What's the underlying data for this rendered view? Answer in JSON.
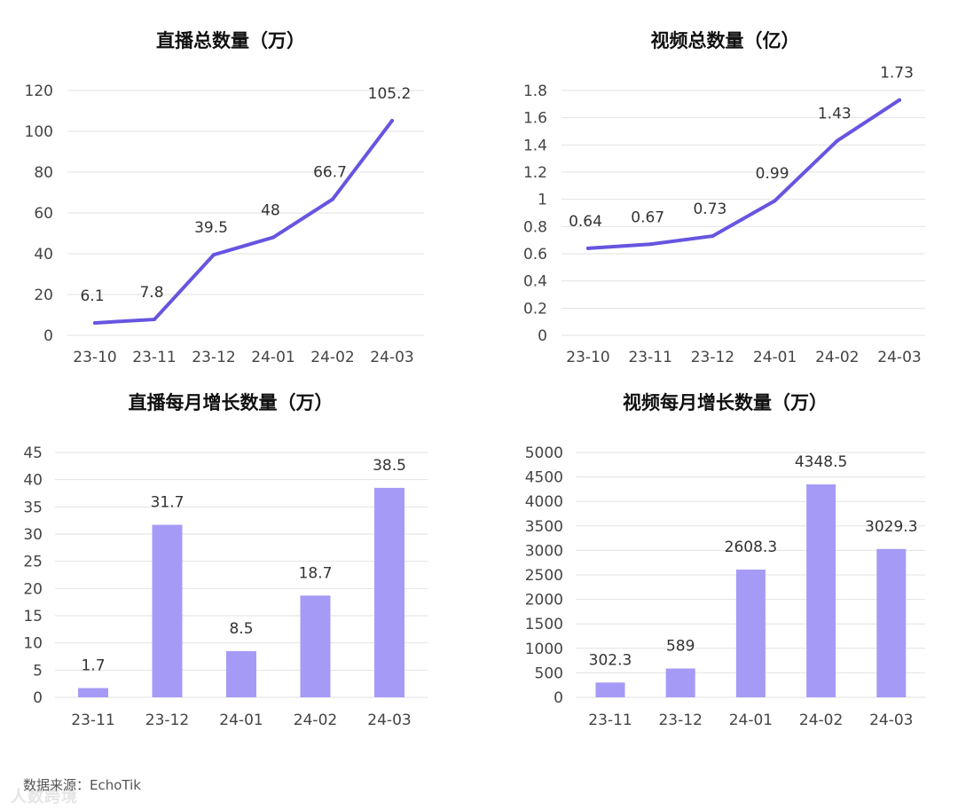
{
  "colors": {
    "line": "#6655e0",
    "bar": "#a59bf6",
    "grid": "#e2e2e2",
    "label": "#333333",
    "axis": "#444444"
  },
  "chart_data": [
    {
      "id": "live-total",
      "type": "line",
      "title": "直播总数量（万）",
      "categories": [
        "23-10",
        "23-11",
        "23-12",
        "24-01",
        "24-02",
        "24-03"
      ],
      "values": [
        6.1,
        7.8,
        39.5,
        48,
        66.7,
        105.2
      ],
      "value_labels": [
        "6.1",
        "7.8",
        "39.5",
        "48",
        "66.7",
        "105.2"
      ],
      "ylim": [
        0,
        120
      ],
      "yticks": [
        "0",
        "20",
        "40",
        "60",
        "80",
        "100",
        "120"
      ],
      "grid": true
    },
    {
      "id": "video-total",
      "type": "line",
      "title": "视频总数量（亿）",
      "categories": [
        "23-10",
        "23-11",
        "23-12",
        "24-01",
        "24-02",
        "24-03"
      ],
      "values": [
        0.64,
        0.67,
        0.73,
        0.99,
        1.43,
        1.73
      ],
      "value_labels": [
        "0.64",
        "0.67",
        "0.73",
        "0.99",
        "1.43",
        "1.73"
      ],
      "ylim": [
        0,
        1.8
      ],
      "yticks": [
        "0",
        "0.2",
        "0.4",
        "0.6",
        "0.8",
        "1",
        "1.2",
        "1.4",
        "1.6",
        "1.8"
      ],
      "grid": true
    },
    {
      "id": "live-monthly",
      "type": "bar",
      "title": "直播每月增长数量（万）",
      "categories": [
        "23-11",
        "23-12",
        "24-01",
        "24-02",
        "24-03"
      ],
      "values": [
        1.7,
        31.7,
        8.5,
        18.7,
        38.5
      ],
      "value_labels": [
        "1.7",
        "31.7",
        "8.5",
        "18.7",
        "38.5"
      ],
      "ylim": [
        0,
        45
      ],
      "yticks": [
        "0",
        "5",
        "10",
        "15",
        "20",
        "25",
        "30",
        "35",
        "40",
        "45"
      ],
      "grid": true
    },
    {
      "id": "video-monthly",
      "type": "bar",
      "title": "视频每月增长数量（万）",
      "categories": [
        "23-11",
        "23-12",
        "24-01",
        "24-02",
        "24-03"
      ],
      "values": [
        302.3,
        589,
        2608.3,
        4348.5,
        3029.3
      ],
      "value_labels": [
        "302.3",
        "589",
        "2608.3",
        "4348.5",
        "3029.3"
      ],
      "ylim": [
        0,
        5000
      ],
      "yticks": [
        "0",
        "500",
        "1000",
        "1500",
        "2000",
        "2500",
        "3000",
        "3500",
        "4000",
        "4500",
        "5000"
      ],
      "grid": true
    }
  ],
  "footer": {
    "source": "数据来源：EchoTik"
  },
  "watermark": {
    "text": "人数跨境"
  }
}
